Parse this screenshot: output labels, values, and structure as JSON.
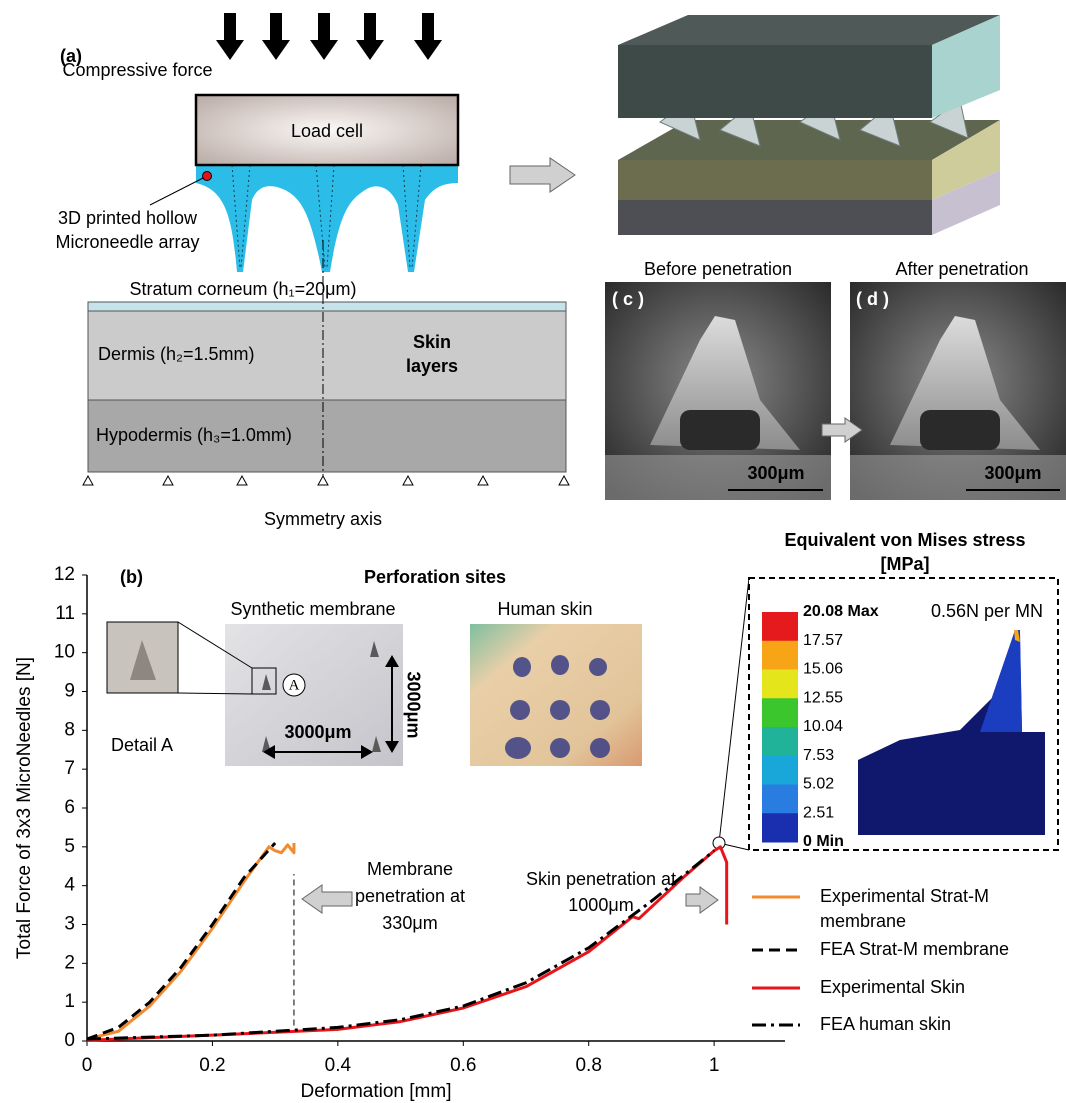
{
  "panel_a": {
    "label": "(a)",
    "force": "Compressive force",
    "load_cell": "Load cell",
    "needle": "3D printed hollow Microneedle array",
    "stratum": "Stratum corneum (h₁=20μm)",
    "dermis": "Dermis (h₂=1.5mm)",
    "layers": "Skin layers",
    "hypodermis": "Hypodermis (h₃=1.0mm)",
    "axis": "Symmetry axis"
  },
  "panel_c": {
    "title": "Before penetration",
    "label": "( c )",
    "scale": "300μm"
  },
  "panel_d": {
    "title": "After penetration",
    "label": "( d )",
    "scale": "300μm"
  },
  "chart_data": {
    "type": "line",
    "label": "(b)",
    "xlabel": "Deformation [mm]",
    "ylabel": "Total Force of 3x3 MicroNeedles [N]",
    "xlim": [
      0,
      1.113
    ],
    "xticks": [
      0,
      0.2,
      0.4,
      0.6,
      0.8,
      1
    ],
    "ylim": [
      0,
      12
    ],
    "yticks": [
      0,
      1,
      2,
      3,
      4,
      5,
      6,
      7,
      8,
      9,
      10,
      11,
      12
    ],
    "series": [
      {
        "name": "Experimental Strat-M membrane",
        "color": "#f28a30",
        "dash": "solid",
        "x": [
          0,
          0.05,
          0.1,
          0.15,
          0.2,
          0.25,
          0.29,
          0.3,
          0.31,
          0.32,
          0.33,
          0.33
        ],
        "values": [
          0.05,
          0.25,
          0.9,
          1.8,
          2.9,
          4.1,
          5.0,
          4.9,
          4.85,
          5.05,
          4.85,
          5.1
        ]
      },
      {
        "name": "FEA Strat-M membrane",
        "color": "#000000",
        "dash": "dashed",
        "x": [
          0,
          0.05,
          0.1,
          0.15,
          0.2,
          0.25,
          0.3
        ],
        "values": [
          0.05,
          0.35,
          1.0,
          1.9,
          3.0,
          4.2,
          5.1
        ]
      },
      {
        "name": "Experimental Skin",
        "color": "#e8141a",
        "dash": "solid",
        "x": [
          0,
          0.2,
          0.4,
          0.5,
          0.6,
          0.7,
          0.8,
          0.87,
          0.88,
          0.95,
          1.0,
          1.01,
          1.02,
          1.02
        ],
        "values": [
          0.02,
          0.15,
          0.3,
          0.5,
          0.85,
          1.4,
          2.3,
          3.2,
          3.15,
          4.2,
          4.9,
          5.0,
          4.6,
          3.0
        ]
      },
      {
        "name": "FEA human skin",
        "color": "#000000",
        "dash": "dashdot",
        "x": [
          0,
          0.2,
          0.4,
          0.5,
          0.6,
          0.7,
          0.8,
          0.9,
          1.0
        ],
        "values": [
          0.05,
          0.15,
          0.35,
          0.55,
          0.9,
          1.5,
          2.4,
          3.6,
          4.9
        ]
      }
    ],
    "vline": {
      "x": 0.33,
      "y": [
        0.4,
        4.3
      ]
    },
    "annotations": [
      "Membrane penetration at 330μm",
      "Skin penetration at 1000μm"
    ],
    "legend": "lower right",
    "insets": {
      "title": "Perforation sites",
      "synthetic": "Synthetic membrane",
      "human": "Human skin",
      "detail": "Detail A",
      "marker": "A",
      "width": "3000μm",
      "height": "3000μm"
    },
    "fea": {
      "title": "Equivalent von Mises stress [MPa]",
      "load": "0.56N per MN",
      "labels": [
        "20.08 Max",
        "17.57",
        "15.06",
        "12.55",
        "10.04",
        "7.53",
        "5.02",
        "2.51",
        "0 Min"
      ],
      "colors": [
        "#e41a1c",
        "#f7a516",
        "#e5e51c",
        "#3cc62e",
        "#20b39a",
        "#18a7d8",
        "#2a7de0",
        "#1a2fb0"
      ]
    }
  }
}
